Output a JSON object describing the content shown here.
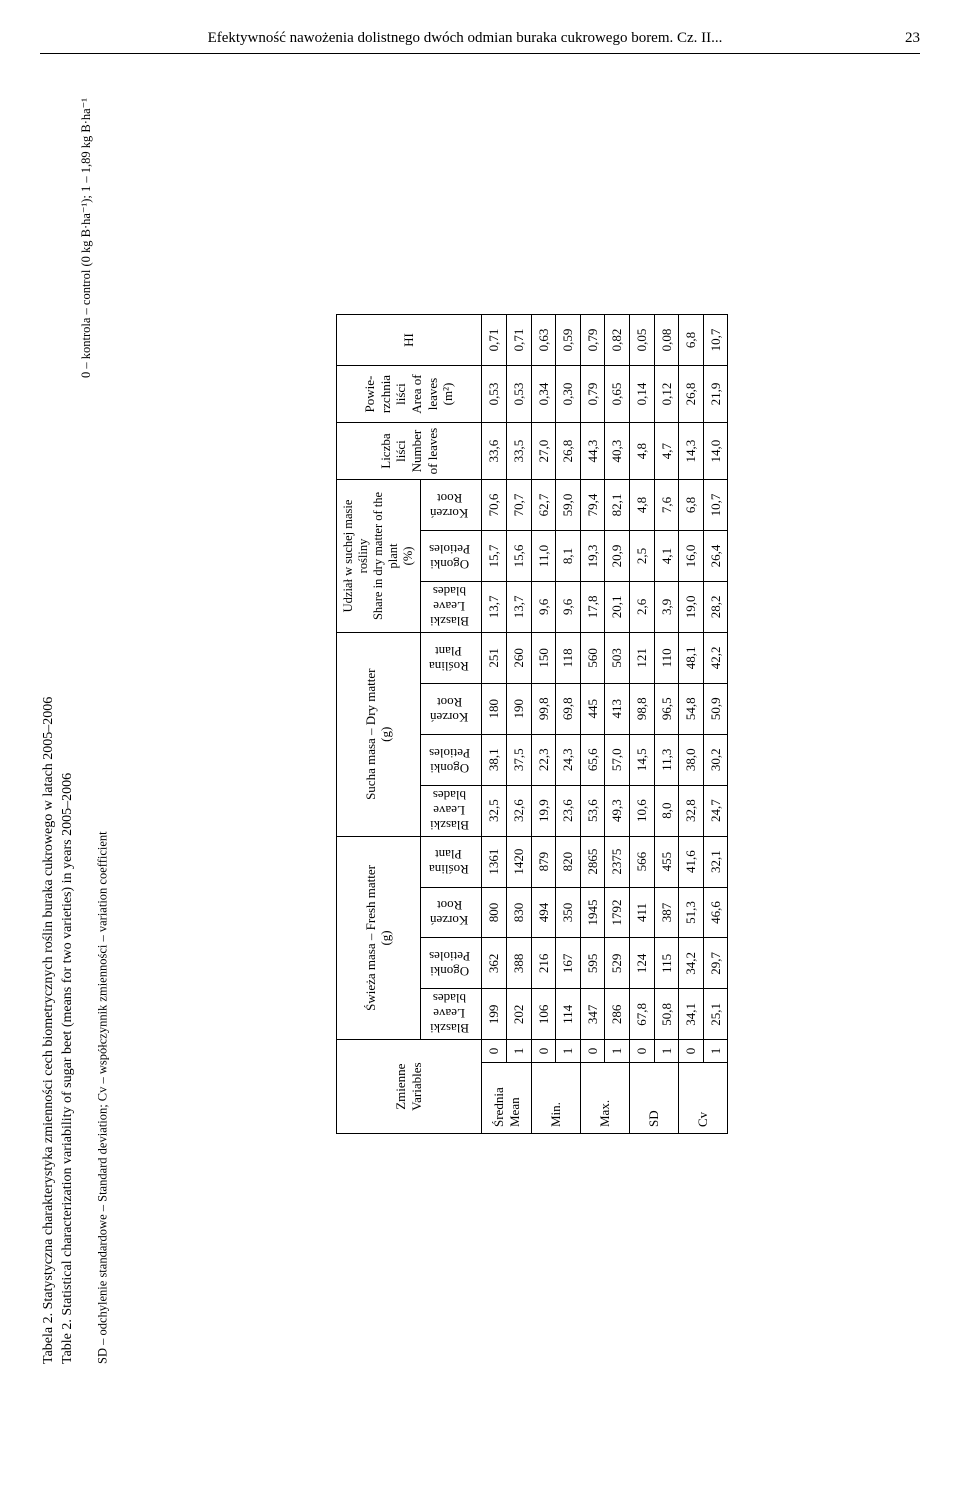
{
  "header": {
    "title": "Efektywność nawożenia dolistnego dwóch odmian buraka cukrowego borem. Cz. II...",
    "page": "23"
  },
  "captions": {
    "tab_pl": "Tabela 2.  Statystyczna charakterystyka zmienności cech biometrycznych roślin buraka cukrowego w latach 2005–2006",
    "tab_en": "Table 2.  Statistical characterization variability of sugar beet (means for two varieties) in years 2005–2006",
    "foot1": "0 – kontrola – control (0 kg B·ha⁻¹); 1 – 1,89 kg B·ha⁻¹",
    "foot2": "SD – odchylenie standardowe – Standard deviation; Cv – współczynnik zmienności – variation coefficient"
  },
  "col_headers": {
    "variables": "Zmienne\nVariables",
    "fresh": "Świeża masa – Fresh matter\n(g)",
    "dry": "Sucha masa – Dry matter\n(g)",
    "share": "Udział w suchej masie rośliny\nShare in dry matter of the\nplant\n(%)",
    "numleaves": "Liczba\nliści\nNumber\nof leaves",
    "areal": "Powie-\nrzchnia\nliści\nArea of\nleaves\n(m²)",
    "hi": "HI",
    "leaf": "Blaszki\nLeave\nblades",
    "pet": "Ogonki\nPetioles",
    "root": "Korzeń\nRoot",
    "plant": "Roślina\nPlant"
  },
  "rows": {
    "mean": {
      "label": "Średnia\nMean",
      "0": [
        "199",
        "362",
        "800",
        "1361",
        "32,5",
        "38,1",
        "180",
        "251",
        "13,7",
        "15,7",
        "70,6",
        "33,6",
        "0,53",
        "0,71"
      ],
      "1": [
        "202",
        "388",
        "830",
        "1420",
        "32,6",
        "37,5",
        "190",
        "260",
        "13,7",
        "15,6",
        "70,7",
        "33,5",
        "0,53",
        "0,71"
      ]
    },
    "min": {
      "label": "Min.",
      "0": [
        "106",
        "216",
        "494",
        "879",
        "19,9",
        "22,3",
        "99,8",
        "150",
        "9,6",
        "11,0",
        "62,7",
        "27,0",
        "0,34",
        "0,63"
      ],
      "1": [
        "114",
        "167",
        "350",
        "820",
        "23,6",
        "24,3",
        "69,8",
        "118",
        "9,6",
        "8,1",
        "59,0",
        "26,8",
        "0,30",
        "0,59"
      ]
    },
    "max": {
      "label": "Max.",
      "0": [
        "347",
        "595",
        "1945",
        "2865",
        "53,6",
        "65,6",
        "445",
        "560",
        "17,8",
        "19,3",
        "79,4",
        "44,3",
        "0,79",
        "0,79"
      ],
      "1": [
        "286",
        "529",
        "1792",
        "2375",
        "49,3",
        "57,0",
        "413",
        "503",
        "20,1",
        "20,9",
        "82,1",
        "40,3",
        "0,65",
        "0,82"
      ]
    },
    "sd": {
      "label": "SD",
      "0": [
        "67,8",
        "124",
        "411",
        "566",
        "10,6",
        "14,5",
        "98,8",
        "121",
        "2,6",
        "2,5",
        "4,8",
        "4,8",
        "0,14",
        "0,05"
      ],
      "1": [
        "50,8",
        "115",
        "387",
        "455",
        "8,0",
        "11,3",
        "96,5",
        "110",
        "3,9",
        "4,1",
        "7,6",
        "4,7",
        "0,12",
        "0,08"
      ]
    },
    "cv": {
      "label": "Cv",
      "0": [
        "34,1",
        "34,2",
        "51,3",
        "41,6",
        "32,8",
        "38,0",
        "54,8",
        "48,1",
        "19,0",
        "16,0",
        "6,8",
        "14,3",
        "26,8",
        "6,8"
      ],
      "1": [
        "25,1",
        "29,7",
        "46,6",
        "32,1",
        "24,7",
        "30,2",
        "50,9",
        "42,2",
        "28,2",
        "26,4",
        "10,7",
        "14,0",
        "21,9",
        "10,7"
      ]
    }
  },
  "levels": [
    "0",
    "1"
  ]
}
